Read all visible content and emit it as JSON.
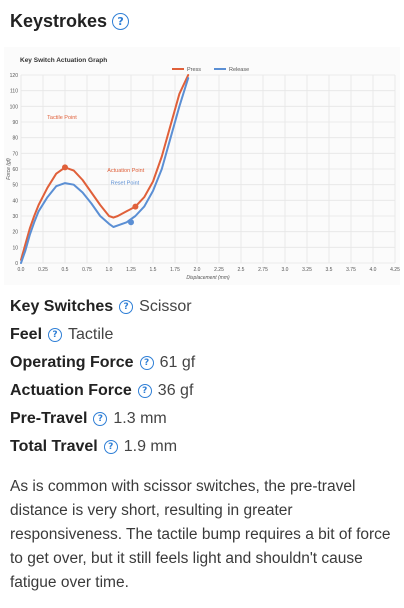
{
  "section": {
    "title": "Keystrokes",
    "help_icon": "question-circle-icon"
  },
  "chart_data": {
    "type": "line",
    "title": "Key Switch Actuation Graph",
    "xlabel": "Displacement (mm)",
    "ylabel": "Force (gf)",
    "xlim": [
      0,
      4.25
    ],
    "ylim": [
      0,
      120
    ],
    "x_ticks": [
      "0.0",
      "0.25",
      "0.5",
      "0.75",
      "1.0",
      "1.25",
      "1.5",
      "1.75",
      "2.0",
      "2.25",
      "2.5",
      "2.75",
      "3.0",
      "3.25",
      "3.5",
      "3.75",
      "4.0",
      "4.25"
    ],
    "y_ticks": [
      "0",
      "10",
      "20",
      "30",
      "40",
      "50",
      "60",
      "70",
      "80",
      "90",
      "100",
      "110",
      "120"
    ],
    "grid": true,
    "legend_position": "top-center",
    "series": [
      {
        "name": "Press",
        "color": "#e0603a",
        "points": [
          [
            0,
            2
          ],
          [
            0.05,
            12
          ],
          [
            0.1,
            22
          ],
          [
            0.15,
            30
          ],
          [
            0.2,
            37
          ],
          [
            0.3,
            48
          ],
          [
            0.4,
            57
          ],
          [
            0.5,
            61
          ],
          [
            0.6,
            59
          ],
          [
            0.7,
            53
          ],
          [
            0.8,
            45
          ],
          [
            0.9,
            37
          ],
          [
            1.0,
            30
          ],
          [
            1.05,
            29
          ],
          [
            1.1,
            30
          ],
          [
            1.2,
            33
          ],
          [
            1.3,
            36
          ],
          [
            1.4,
            42
          ],
          [
            1.5,
            52
          ],
          [
            1.6,
            68
          ],
          [
            1.7,
            88
          ],
          [
            1.8,
            108
          ],
          [
            1.9,
            120
          ]
        ]
      },
      {
        "name": "Release",
        "color": "#5b8fd4",
        "points": [
          [
            0,
            0
          ],
          [
            0.05,
            8
          ],
          [
            0.1,
            18
          ],
          [
            0.15,
            26
          ],
          [
            0.2,
            33
          ],
          [
            0.3,
            42
          ],
          [
            0.4,
            49
          ],
          [
            0.5,
            51
          ],
          [
            0.6,
            50
          ],
          [
            0.7,
            45
          ],
          [
            0.8,
            38
          ],
          [
            0.9,
            30
          ],
          [
            1.0,
            25
          ],
          [
            1.05,
            23
          ],
          [
            1.1,
            24
          ],
          [
            1.2,
            26
          ],
          [
            1.3,
            30
          ],
          [
            1.4,
            36
          ],
          [
            1.5,
            46
          ],
          [
            1.6,
            60
          ],
          [
            1.7,
            80
          ],
          [
            1.8,
            100
          ],
          [
            1.9,
            118
          ]
        ]
      }
    ],
    "annotations": [
      {
        "text": "Tactile Point",
        "x": 0.5,
        "y": 61,
        "series": "Press",
        "color": "#e0603a"
      },
      {
        "text": "Actuation Point",
        "x": 1.3,
        "y": 36,
        "series": "Press",
        "color": "#e0603a"
      },
      {
        "text": "Reset Point",
        "x": 1.25,
        "y": 26,
        "series": "Release",
        "color": "#5b8fd4"
      }
    ]
  },
  "specs": [
    {
      "label": "Key Switches",
      "value": "Scissor"
    },
    {
      "label": "Feel",
      "value": "Tactile"
    },
    {
      "label": "Operating Force",
      "value": "61 gf"
    },
    {
      "label": "Actuation Force",
      "value": "36 gf"
    },
    {
      "label": "Pre-Travel",
      "value": "1.3 mm"
    },
    {
      "label": "Total Travel",
      "value": "1.9 mm"
    }
  ],
  "help_glyph": "?",
  "description": "As is common with scissor switches, the pre-travel distance is very short, resulting in greater responsiveness. The tactile bump requires a bit of force to get over, but it still feels light and shouldn't cause fatigue over time."
}
